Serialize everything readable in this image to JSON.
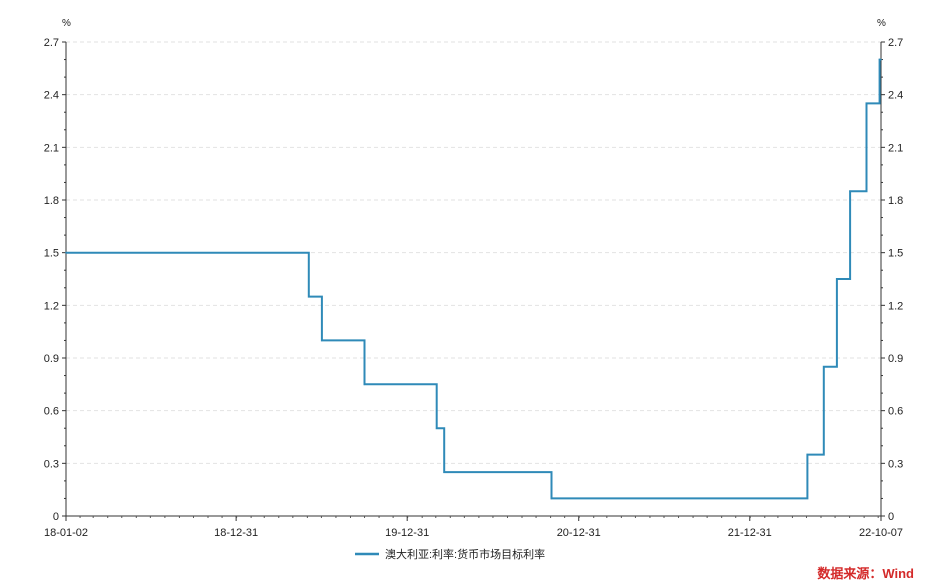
{
  "chart_data": {
    "type": "line",
    "line_style": "step",
    "y_unit_left": "%",
    "y_unit_right": "%",
    "ylim": [
      0,
      2.7
    ],
    "y_ticks": [
      "0",
      "0.3",
      "0.6",
      "0.9",
      "1.2",
      "1.5",
      "1.8",
      "2.1",
      "2.4",
      "2.7"
    ],
    "x_range": [
      "2018-01-02",
      "2022-10-07"
    ],
    "x_ticks": [
      {
        "date": "2018-01-02",
        "label": "18-01-02"
      },
      {
        "date": "2018-12-31",
        "label": "18-12-31"
      },
      {
        "date": "2019-12-31",
        "label": "19-12-31"
      },
      {
        "date": "2020-12-31",
        "label": "20-12-31"
      },
      {
        "date": "2021-12-31",
        "label": "21-12-31"
      },
      {
        "date": "2022-10-07",
        "label": "22-10-07"
      }
    ],
    "grid": true,
    "series": [
      {
        "name": "澳大利亚:利率:货币市场目标利率",
        "color": "#2f8ab8",
        "points": [
          [
            "2018-01-02",
            1.5
          ],
          [
            "2019-06-04",
            1.25
          ],
          [
            "2019-07-02",
            1.0
          ],
          [
            "2019-10-01",
            0.75
          ],
          [
            "2020-03-03",
            0.5
          ],
          [
            "2020-03-19",
            0.25
          ],
          [
            "2020-11-03",
            0.1
          ],
          [
            "2022-05-03",
            0.35
          ],
          [
            "2022-06-07",
            0.85
          ],
          [
            "2022-07-05",
            1.35
          ],
          [
            "2022-08-02",
            1.85
          ],
          [
            "2022-09-06",
            2.35
          ],
          [
            "2022-10-04",
            2.6
          ],
          [
            "2022-10-07",
            2.6
          ]
        ]
      }
    ],
    "legend_position": "bottom-center",
    "source": "数据来源：Wind",
    "source_color": "#d42a2a"
  }
}
